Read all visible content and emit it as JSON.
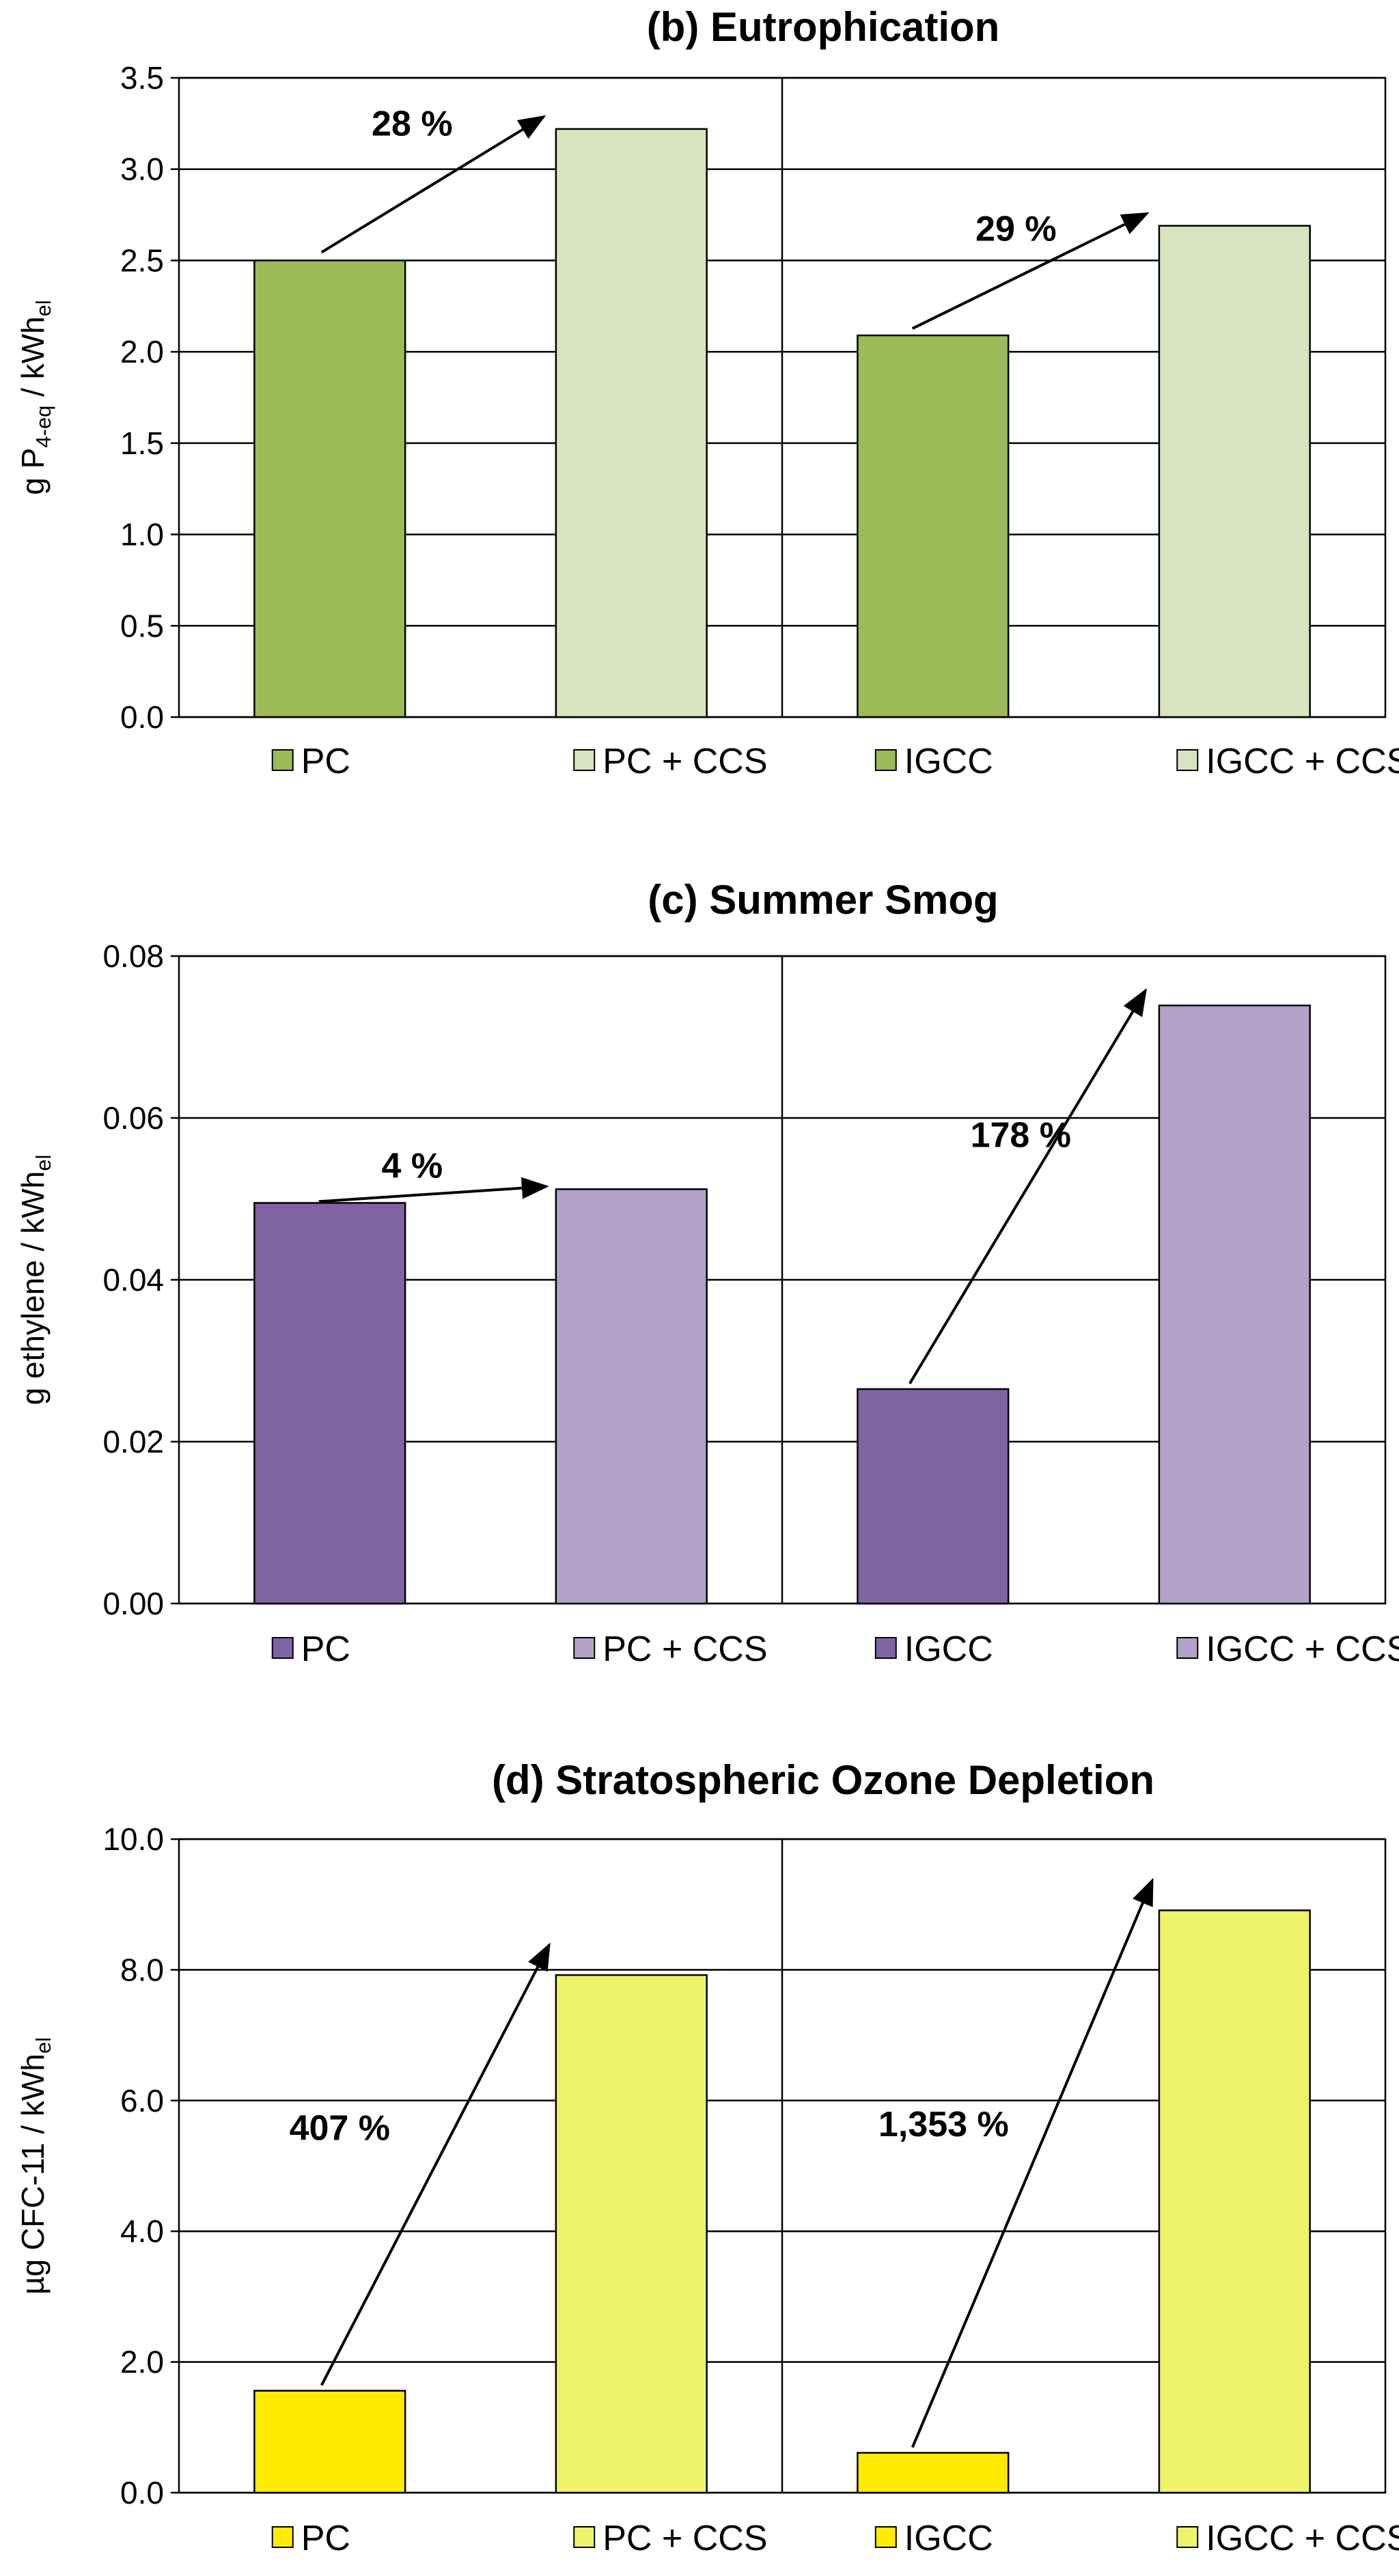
{
  "chart_data": [
    {
      "type": "bar",
      "title": "(b) Eutrophication",
      "ylabel": {
        "main": "g P",
        "sub": "4-eq",
        "unit": " / kWh",
        "unit_sub": "el"
      },
      "ylim": [
        0,
        3.5
      ],
      "yticks": [
        "0.0",
        "0.5",
        "1.0",
        "1.5",
        "2.0",
        "2.5",
        "3.0",
        "3.5"
      ],
      "categories": [
        "PC",
        "PC + CCS",
        "IGCC",
        "IGCC + CCS"
      ],
      "values": [
        2.5,
        3.22,
        2.09,
        2.69
      ],
      "colors": [
        "#9BBB59",
        "#D7E4BD",
        "#9BBB59",
        "#D7E4BD"
      ],
      "annotations": [
        {
          "label": "28 %",
          "from_bar": 0,
          "to_bar": 1
        },
        {
          "label": "29 %",
          "from_bar": 2,
          "to_bar": 3
        }
      ],
      "legend": [
        "PC",
        "PC + CCS",
        "IGCC",
        "IGCC + CCS"
      ]
    },
    {
      "type": "bar",
      "title": "(c) Summer Smog",
      "ylabel": {
        "main": "g ethylene",
        "sub": "",
        "unit": " / kWh",
        "unit_sub": "el"
      },
      "ylim": [
        0,
        0.08
      ],
      "yticks": [
        "0.00",
        "0.02",
        "0.04",
        "0.06",
        "0.08"
      ],
      "categories": [
        "PC",
        "PC + CCS",
        "IGCC",
        "IGCC + CCS"
      ],
      "values": [
        0.0495,
        0.0512,
        0.0265,
        0.0739
      ],
      "colors": [
        "#8064A2",
        "#B3A2C7",
        "#8064A2",
        "#B3A2C7"
      ],
      "annotations": [
        {
          "label": "4 %",
          "from_bar": 0,
          "to_bar": 1
        },
        {
          "label": "178 %",
          "from_bar": 2,
          "to_bar": 3
        }
      ],
      "legend": [
        "PC",
        "PC + CCS",
        "IGCC",
        "IGCC + CCS"
      ]
    },
    {
      "type": "bar",
      "title": "(d) Stratospheric Ozone Depletion",
      "ylabel": {
        "main": "µg CFC-11",
        "sub": "",
        "unit": " / kWh",
        "unit_sub": "el"
      },
      "ylim": [
        0,
        10
      ],
      "yticks": [
        "0.0",
        "2.0",
        "4.0",
        "6.0",
        "8.0",
        "10.0"
      ],
      "categories": [
        "PC",
        "PC + CCS",
        "IGCC",
        "IGCC + CCS"
      ],
      "values": [
        1.56,
        7.92,
        0.61,
        8.91
      ],
      "colors": [
        "#FFEB00",
        "#EEF36A",
        "#FFEB00",
        "#EEF36A"
      ],
      "annotations": [
        {
          "label": "407 %",
          "from_bar": 0,
          "to_bar": 1
        },
        {
          "label": "1,353 %",
          "from_bar": 2,
          "to_bar": 3
        }
      ],
      "legend": [
        "PC",
        "PC + CCS",
        "IGCC",
        "IGCC + CCS"
      ]
    }
  ]
}
